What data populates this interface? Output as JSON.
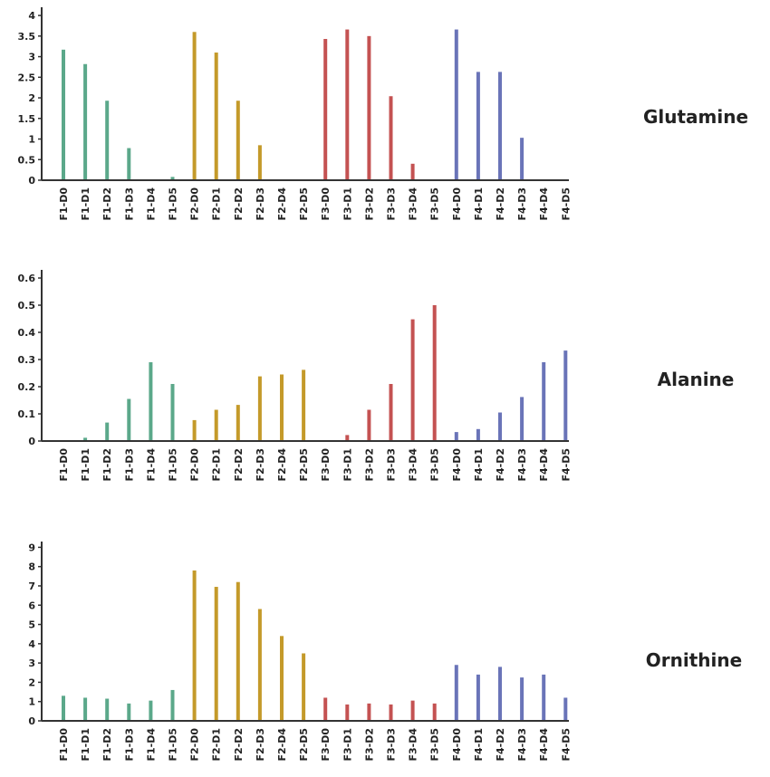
{
  "chart_data": [
    {
      "type": "bar",
      "title": "Glutamine",
      "categories": [
        "F1-D0",
        "F1-D1",
        "F1-D2",
        "F1-D3",
        "F1-D4",
        "F1-D5",
        "F2-D0",
        "F2-D1",
        "F2-D2",
        "F2-D3",
        "F2-D4",
        "F2-D5",
        "F3-D0",
        "F3-D1",
        "F3-D2",
        "F3-D3",
        "F3-D4",
        "F3-D5",
        "F4-D0",
        "F4-D1",
        "F4-D2",
        "F4-D3",
        "F4-D4",
        "F4-D5"
      ],
      "values": [
        3.17,
        2.82,
        1.93,
        0.78,
        0,
        0.08,
        3.6,
        3.1,
        1.93,
        0.85,
        0,
        0,
        3.43,
        3.66,
        3.5,
        2.04,
        0.4,
        0,
        3.66,
        2.63,
        2.63,
        1.03,
        0,
        0
      ],
      "colors": [
        "#5ba88a",
        "#5ba88a",
        "#5ba88a",
        "#5ba88a",
        "#5ba88a",
        "#5ba88a",
        "#c49a2a",
        "#c49a2a",
        "#c49a2a",
        "#c49a2a",
        "#c49a2a",
        "#c49a2a",
        "#c45252",
        "#c45252",
        "#c45252",
        "#c45252",
        "#c45252",
        "#c45252",
        "#6a74b8",
        "#6a74b8",
        "#6a74b8",
        "#6a74b8",
        "#6a74b8",
        "#6a74b8"
      ],
      "yticks": [
        "0",
        "0.5",
        "1",
        "1.5",
        "2",
        "2.5",
        "3",
        "3.5",
        "4"
      ],
      "ylim": [
        0,
        4.2
      ]
    },
    {
      "type": "bar",
      "title": "Alanine",
      "categories": [
        "F1-D0",
        "F1-D1",
        "F1-D2",
        "F1-D3",
        "F1-D4",
        "F1-D5",
        "F2-D0",
        "F2-D1",
        "F2-D2",
        "F2-D3",
        "F2-D4",
        "F2-D5",
        "F3-D0",
        "F3-D1",
        "F3-D2",
        "F3-D3",
        "F3-D4",
        "F3-D5",
        "F4-D0",
        "F4-D1",
        "F4-D2",
        "F4-D3",
        "F4-D4",
        "F4-D5"
      ],
      "values": [
        0,
        0.012,
        0.068,
        0.155,
        0.29,
        0.21,
        0.077,
        0.115,
        0.133,
        0.238,
        0.245,
        0.262,
        0,
        0.022,
        0.115,
        0.21,
        0.448,
        0.5,
        0.033,
        0.044,
        0.105,
        0.162,
        0.29,
        0.333
      ],
      "colors": [
        "#5ba88a",
        "#5ba88a",
        "#5ba88a",
        "#5ba88a",
        "#5ba88a",
        "#5ba88a",
        "#c49a2a",
        "#c49a2a",
        "#c49a2a",
        "#c49a2a",
        "#c49a2a",
        "#c49a2a",
        "#c45252",
        "#c45252",
        "#c45252",
        "#c45252",
        "#c45252",
        "#c45252",
        "#6a74b8",
        "#6a74b8",
        "#6a74b8",
        "#6a74b8",
        "#6a74b8",
        "#6a74b8"
      ],
      "yticks": [
        "0",
        "0.1",
        "0.2",
        "0.3",
        "0.4",
        "0.5",
        "0.6"
      ],
      "ylim": [
        0,
        0.63
      ]
    },
    {
      "type": "bar",
      "title": "Ornithine",
      "categories": [
        "F1-D0",
        "F1-D1",
        "F1-D2",
        "F1-D3",
        "F1-D4",
        "F1-D5",
        "F2-D0",
        "F2-D1",
        "F2-D2",
        "F2-D3",
        "F2-D4",
        "F2-D5",
        "F3-D0",
        "F3-D1",
        "F3-D2",
        "F3-D3",
        "F3-D4",
        "F3-D5",
        "F4-D0",
        "F4-D1",
        "F4-D2",
        "F4-D3",
        "F4-D4",
        "F4-D5"
      ],
      "values": [
        1.3,
        1.2,
        1.15,
        0.9,
        1.05,
        1.6,
        7.8,
        6.95,
        7.2,
        5.8,
        4.4,
        3.5,
        1.2,
        0.85,
        0.9,
        0.85,
        1.05,
        0.9,
        2.9,
        2.4,
        2.8,
        2.25,
        2.4,
        1.2
      ],
      "colors": [
        "#5ba88a",
        "#5ba88a",
        "#5ba88a",
        "#5ba88a",
        "#5ba88a",
        "#5ba88a",
        "#c49a2a",
        "#c49a2a",
        "#c49a2a",
        "#c49a2a",
        "#c49a2a",
        "#c49a2a",
        "#c45252",
        "#c45252",
        "#c45252",
        "#c45252",
        "#c45252",
        "#c45252",
        "#6a74b8",
        "#6a74b8",
        "#6a74b8",
        "#6a74b8",
        "#6a74b8",
        "#6a74b8"
      ],
      "yticks": [
        "0",
        "1",
        "2",
        "3",
        "4",
        "5",
        "6",
        "7",
        "8",
        "9"
      ],
      "ylim": [
        0,
        9.3
      ]
    }
  ]
}
